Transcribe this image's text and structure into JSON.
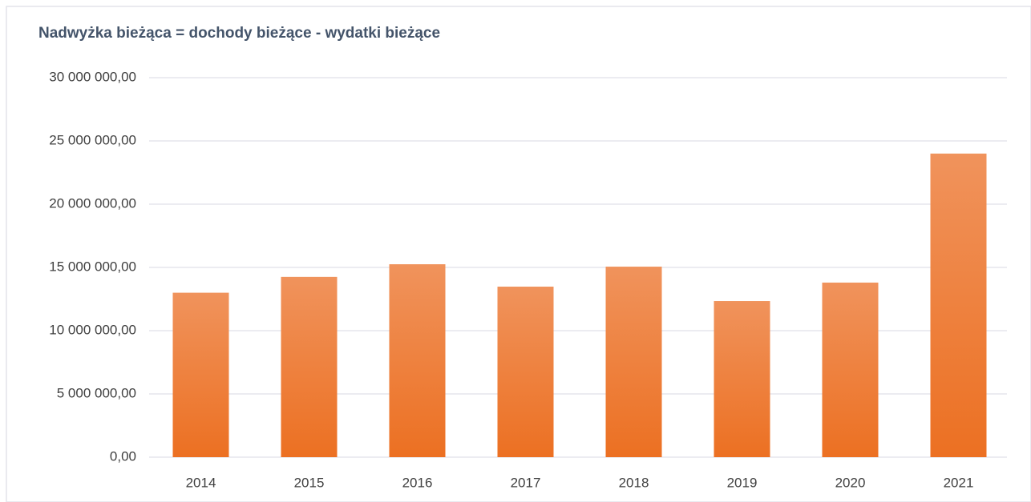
{
  "chart_data": {
    "type": "bar",
    "title": "Nadwyżka bieżąca = dochody bieżące - wydatki bieżące",
    "categories": [
      "2014",
      "2015",
      "2016",
      "2017",
      "2018",
      "2019",
      "2020",
      "2021"
    ],
    "values": [
      13000000,
      14250000,
      15250000,
      13480000,
      15060000,
      12340000,
      13800000,
      24000000
    ],
    "color": "#ec7022",
    "ylim": [
      0,
      30000000
    ],
    "yticks": [
      {
        "value": 0,
        "label": "0,00"
      },
      {
        "value": 5000000,
        "label": "5 000 000,00"
      },
      {
        "value": 10000000,
        "label": "10 000 000,00"
      },
      {
        "value": 15000000,
        "label": "15 000 000,00"
      },
      {
        "value": 20000000,
        "label": "20 000 000,00"
      },
      {
        "value": 25000000,
        "label": "25 000 000,00"
      },
      {
        "value": 30000000,
        "label": "30 000 000,00"
      }
    ],
    "grid": true
  }
}
